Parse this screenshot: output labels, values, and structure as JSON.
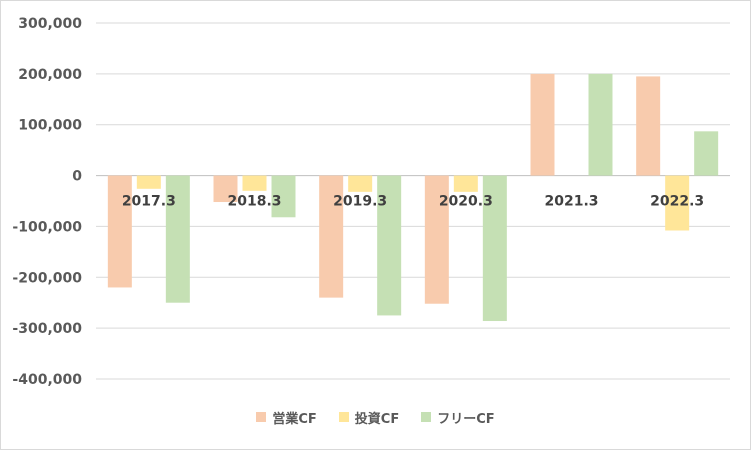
{
  "chart_data": {
    "type": "bar",
    "categories": [
      "2017.3",
      "2018.3",
      "2019.3",
      "2020.3",
      "2021.3",
      "2022.3"
    ],
    "series": [
      {
        "name": "営業CF",
        "color": "#F8CBAD",
        "values": [
          -220000,
          -52000,
          -240000,
          -252000,
          200000,
          195000
        ]
      },
      {
        "name": "投資CF",
        "color": "#FFE699",
        "values": [
          -26000,
          -30000,
          -32000,
          -32000,
          0,
          -108000
        ]
      },
      {
        "name": "フリーCF",
        "color": "#C5E0B4",
        "values": [
          -250000,
          -82000,
          -275000,
          -286000,
          200000,
          87000
        ]
      }
    ],
    "y_ticks": [
      "300,000",
      "200,000",
      "100,000",
      "0",
      "-100,000",
      "-200,000",
      "-300,000",
      "-400,000"
    ],
    "ylim": [
      -400000,
      300000
    ],
    "grid": true,
    "legend_position": "bottom",
    "title": "",
    "xlabel": "",
    "ylabel": ""
  }
}
